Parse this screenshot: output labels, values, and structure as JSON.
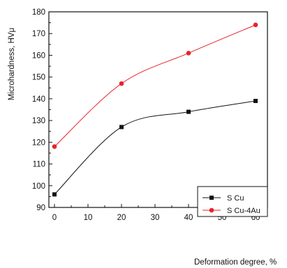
{
  "chart_data": {
    "type": "line",
    "xlabel": "Deformation degree, %",
    "ylabel": "Microhardness, HVμ",
    "xlim": [
      0,
      60
    ],
    "ylim": [
      90,
      180
    ],
    "x_ticks": [
      0,
      10,
      20,
      30,
      40,
      50,
      60
    ],
    "y_ticks": [
      90,
      100,
      110,
      120,
      130,
      140,
      150,
      160,
      170,
      180
    ],
    "grid": false,
    "legend_position": "bottom-right",
    "series": [
      {
        "name": "S Cu",
        "color": "#111111",
        "marker": "square",
        "x": [
          0,
          20,
          40,
          60
        ],
        "y": [
          96,
          127,
          134,
          139
        ]
      },
      {
        "name": "S Cu-4Au",
        "color": "#e8222a",
        "marker": "circle",
        "x": [
          0,
          20,
          40,
          60
        ],
        "y": [
          118,
          147,
          161,
          174
        ]
      }
    ]
  }
}
